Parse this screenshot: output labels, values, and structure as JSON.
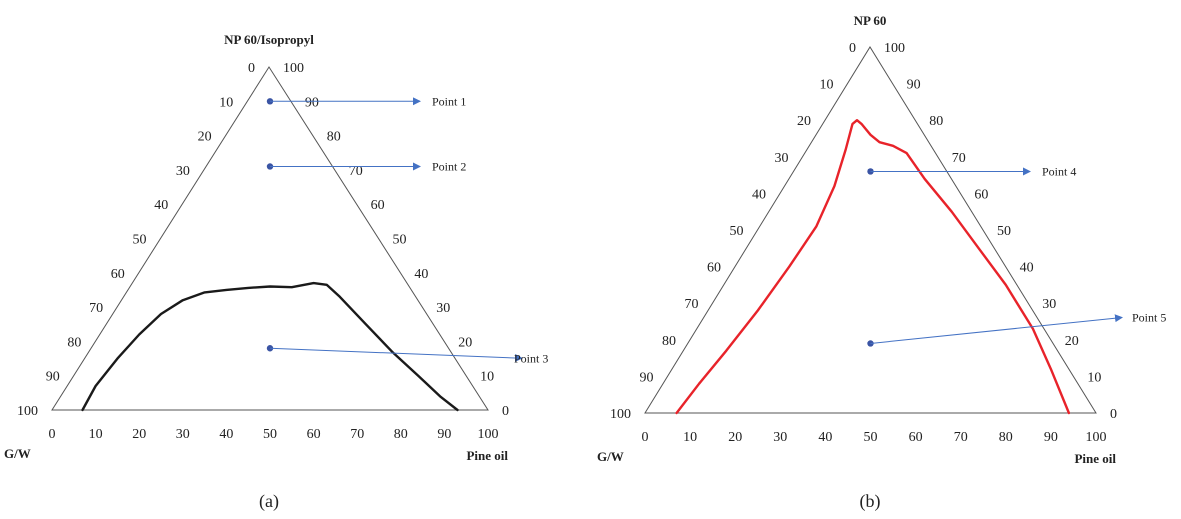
{
  "panels": [
    {
      "id": "a",
      "panel_label": "(a)",
      "apex_label": "NP 60/Isopropyl",
      "left_corner_label": "G/W",
      "right_corner_label": "Pine oil",
      "left_edge_ticks": [
        "0",
        "10",
        "20",
        "30",
        "40",
        "50",
        "60",
        "70",
        "80",
        "90",
        "100"
      ],
      "right_edge_ticks": [
        "100",
        "90",
        "80",
        "70",
        "60",
        "50",
        "40",
        "30",
        "20",
        "10",
        "0"
      ],
      "bottom_ticks": [
        "0",
        "10",
        "20",
        "30",
        "40",
        "50",
        "60",
        "70",
        "80",
        "90",
        "100"
      ],
      "boundary_color": "#1a1a1a",
      "boundary": [
        [
          7,
          0
        ],
        [
          10,
          7
        ],
        [
          15,
          15
        ],
        [
          20,
          22
        ],
        [
          25,
          28
        ],
        [
          30,
          32
        ],
        [
          35,
          34.3
        ],
        [
          40,
          35
        ],
        [
          45,
          35.6
        ],
        [
          50,
          36
        ],
        [
          55,
          35.8
        ],
        [
          60,
          37
        ],
        [
          63,
          36.5
        ],
        [
          66,
          33
        ],
        [
          72,
          25
        ],
        [
          78,
          17
        ],
        [
          84,
          10
        ],
        [
          89,
          4
        ],
        [
          93,
          0
        ]
      ],
      "points": [
        {
          "label": "Point 1",
          "x": 50,
          "y": 90
        },
        {
          "label": "Point 2",
          "x": 50,
          "y": 71
        },
        {
          "label": "Point 3",
          "x": 50,
          "y": 18
        }
      ]
    },
    {
      "id": "b",
      "panel_label": "(b)",
      "apex_label": "NP 60",
      "left_corner_label": "G/W",
      "right_corner_label": "Pine oil",
      "left_edge_ticks": [
        "0",
        "10",
        "20",
        "30",
        "40",
        "50",
        "60",
        "70",
        "80",
        "90",
        "100"
      ],
      "right_edge_ticks": [
        "100",
        "90",
        "80",
        "70",
        "60",
        "50",
        "40",
        "30",
        "20",
        "10",
        "0"
      ],
      "bottom_ticks": [
        "0",
        "10",
        "20",
        "30",
        "40",
        "50",
        "60",
        "70",
        "80",
        "90",
        "100"
      ],
      "boundary_color": "#e8232a",
      "boundary": [
        [
          7,
          0
        ],
        [
          12,
          8
        ],
        [
          18,
          17
        ],
        [
          25,
          28
        ],
        [
          32,
          40
        ],
        [
          38,
          51
        ],
        [
          42,
          62
        ],
        [
          44.5,
          72
        ],
        [
          46,
          79
        ],
        [
          47,
          80
        ],
        [
          48,
          79
        ],
        [
          50,
          76
        ],
        [
          52,
          74
        ],
        [
          55,
          73
        ],
        [
          58,
          71
        ],
        [
          62,
          64
        ],
        [
          68,
          55
        ],
        [
          74,
          45
        ],
        [
          80,
          35
        ],
        [
          86,
          23
        ],
        [
          90,
          12
        ],
        [
          93,
          3
        ],
        [
          94,
          0
        ]
      ],
      "points": [
        {
          "label": "Point 4",
          "x": 50,
          "y": 66
        },
        {
          "label": "Point 5",
          "x": 50,
          "y": 19
        }
      ]
    }
  ]
}
